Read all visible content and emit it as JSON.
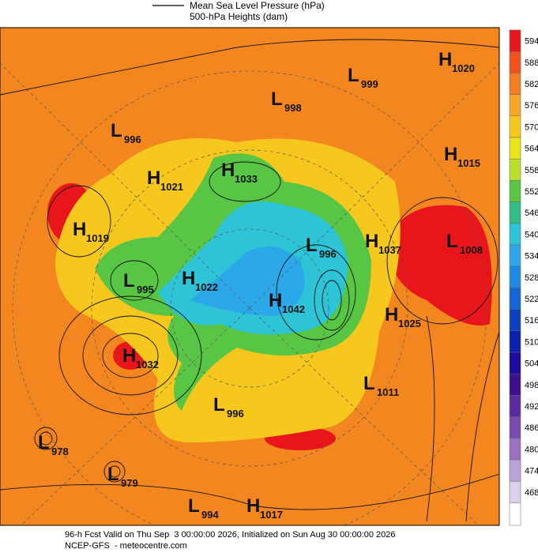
{
  "legend": {
    "mslp": "Mean Sea Level Pressure (hPa)",
    "heights": "500-hPa Heights (dam)"
  },
  "centers": [
    {
      "type": "H",
      "value": 1020
    },
    {
      "type": "L",
      "value": 999
    },
    {
      "type": "L",
      "value": 998
    },
    {
      "type": "L",
      "value": 996
    },
    {
      "type": "H",
      "value": 1015
    },
    {
      "type": "H",
      "value": 1021
    },
    {
      "type": "H",
      "value": 1033
    },
    {
      "type": "H",
      "value": 1019
    },
    {
      "type": "L",
      "value": 996
    },
    {
      "type": "H",
      "value": 1037
    },
    {
      "type": "L",
      "value": 1008
    },
    {
      "type": "L",
      "value": 995
    },
    {
      "type": "H",
      "value": 1022
    },
    {
      "type": "H",
      "value": 1042
    },
    {
      "type": "H",
      "value": 1025
    },
    {
      "type": "H",
      "value": 1032
    },
    {
      "type": "L",
      "value": 1011
    },
    {
      "type": "L",
      "value": 996
    },
    {
      "type": "L",
      "value": 978
    },
    {
      "type": "L",
      "value": 979
    },
    {
      "type": "L",
      "value": 994
    },
    {
      "type": "H",
      "value": 1017
    }
  ],
  "colorbar": {
    "levels": [
      594,
      588,
      582,
      576,
      570,
      564,
      558,
      552,
      546,
      540,
      534,
      528,
      522,
      516,
      510,
      504,
      498,
      492,
      486,
      480,
      474,
      468
    ],
    "colors": [
      "#e8161b",
      "#f2501c",
      "#f57c20",
      "#f8a526",
      "#f6c81e",
      "#eee41c",
      "#b8e02a",
      "#58c544",
      "#2fbf86",
      "#2cc4d6",
      "#2aa8e8",
      "#1e88e5",
      "#1565d8",
      "#0b40c6",
      "#0a20b0",
      "#1b0a9c",
      "#3c108e",
      "#5b2c9e",
      "#7a4cb0",
      "#9b72c2",
      "#bca2d8",
      "#ddd0ec"
    ]
  },
  "footer": {
    "line1": "96-h Fcst Valid on Thu Sep  3 00:00:00 2026, Initialized on Sun Aug 30 00:00:00 2026",
    "line2": "NCEP-GFS  - meteocentre.com"
  }
}
